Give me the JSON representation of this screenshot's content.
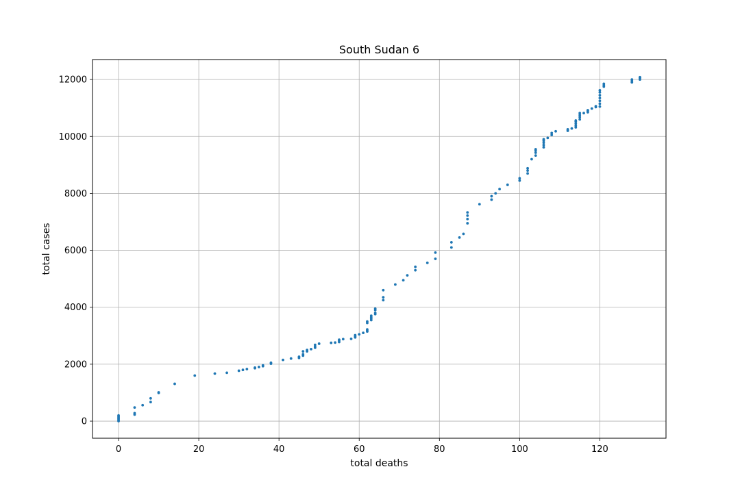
{
  "chart_data": {
    "type": "scatter",
    "title": "South Sudan 6",
    "xlabel": "total deaths",
    "ylabel": "total cases",
    "xlim": [
      -6.5,
      136.5
    ],
    "ylim": [
      -600,
      12700
    ],
    "xticks": [
      0,
      20,
      40,
      60,
      80,
      100,
      120
    ],
    "yticks": [
      0,
      2000,
      4000,
      6000,
      8000,
      10000,
      12000
    ],
    "grid": true,
    "marker_color": "#1f77b4",
    "series": [
      {
        "points": [
          [
            0,
            0
          ],
          [
            0,
            40
          ],
          [
            0,
            80
          ],
          [
            0,
            120
          ],
          [
            0,
            160
          ],
          [
            0,
            200
          ],
          [
            4,
            230
          ],
          [
            4,
            280
          ],
          [
            4,
            480
          ],
          [
            6,
            560
          ],
          [
            8,
            670
          ],
          [
            8,
            800
          ],
          [
            10,
            990
          ],
          [
            10,
            1010
          ],
          [
            14,
            1310
          ],
          [
            19,
            1600
          ],
          [
            24,
            1670
          ],
          [
            27,
            1700
          ],
          [
            30,
            1770
          ],
          [
            31,
            1800
          ],
          [
            32,
            1830
          ],
          [
            34,
            1860
          ],
          [
            34,
            1880
          ],
          [
            35,
            1900
          ],
          [
            36,
            1930
          ],
          [
            36,
            1960
          ],
          [
            38,
            2020
          ],
          [
            38,
            2050
          ],
          [
            41,
            2150
          ],
          [
            43,
            2200
          ],
          [
            45,
            2220
          ],
          [
            45,
            2260
          ],
          [
            46,
            2300
          ],
          [
            46,
            2350
          ],
          [
            46,
            2450
          ],
          [
            47,
            2450
          ],
          [
            47,
            2500
          ],
          [
            48,
            2530
          ],
          [
            49,
            2580
          ],
          [
            49,
            2620
          ],
          [
            49,
            2680
          ],
          [
            50,
            2720
          ],
          [
            53,
            2750
          ],
          [
            54,
            2760
          ],
          [
            55,
            2780
          ],
          [
            55,
            2820
          ],
          [
            55,
            2860
          ],
          [
            56,
            2880
          ],
          [
            58,
            2890
          ],
          [
            59,
            2940
          ],
          [
            59,
            2980
          ],
          [
            59,
            3020
          ],
          [
            60,
            3050
          ],
          [
            61,
            3100
          ],
          [
            62,
            3150
          ],
          [
            62,
            3180
          ],
          [
            62,
            3220
          ],
          [
            62,
            3450
          ],
          [
            62,
            3500
          ],
          [
            63,
            3550
          ],
          [
            63,
            3600
          ],
          [
            63,
            3650
          ],
          [
            63,
            3700
          ],
          [
            64,
            3760
          ],
          [
            64,
            3800
          ],
          [
            64,
            3900
          ],
          [
            64,
            3950
          ],
          [
            66,
            4250
          ],
          [
            66,
            4350
          ],
          [
            66,
            4600
          ],
          [
            69,
            4800
          ],
          [
            71,
            4950
          ],
          [
            72,
            5120
          ],
          [
            74,
            5300
          ],
          [
            74,
            5420
          ],
          [
            77,
            5560
          ],
          [
            79,
            5700
          ],
          [
            79,
            5920
          ],
          [
            83,
            6100
          ],
          [
            83,
            6280
          ],
          [
            85,
            6450
          ],
          [
            86,
            6580
          ],
          [
            87,
            6950
          ],
          [
            87,
            7100
          ],
          [
            87,
            7220
          ],
          [
            87,
            7330
          ],
          [
            90,
            7620
          ],
          [
            93,
            7780
          ],
          [
            93,
            7900
          ],
          [
            94,
            8000
          ],
          [
            95,
            8150
          ],
          [
            97,
            8300
          ],
          [
            100,
            8450
          ],
          [
            100,
            8530
          ],
          [
            102,
            8700
          ],
          [
            102,
            8800
          ],
          [
            102,
            8880
          ],
          [
            103,
            9200
          ],
          [
            104,
            9330
          ],
          [
            104,
            9430
          ],
          [
            104,
            9500
          ],
          [
            104,
            9550
          ],
          [
            106,
            9620
          ],
          [
            106,
            9700
          ],
          [
            106,
            9780
          ],
          [
            106,
            9850
          ],
          [
            106,
            9900
          ],
          [
            107,
            9950
          ],
          [
            108,
            10050
          ],
          [
            108,
            10120
          ],
          [
            109,
            10180
          ],
          [
            112,
            10200
          ],
          [
            112,
            10250
          ],
          [
            113,
            10280
          ],
          [
            114,
            10320
          ],
          [
            114,
            10380
          ],
          [
            114,
            10450
          ],
          [
            114,
            10520
          ],
          [
            114,
            10560
          ],
          [
            115,
            10600
          ],
          [
            115,
            10680
          ],
          [
            115,
            10750
          ],
          [
            115,
            10820
          ],
          [
            116,
            10820
          ],
          [
            117,
            10850
          ],
          [
            117,
            10900
          ],
          [
            117,
            10920
          ],
          [
            118,
            10980
          ],
          [
            119,
            11030
          ],
          [
            119,
            11060
          ],
          [
            120,
            11050
          ],
          [
            120,
            11150
          ],
          [
            120,
            11250
          ],
          [
            120,
            11350
          ],
          [
            120,
            11450
          ],
          [
            120,
            11550
          ],
          [
            120,
            11620
          ],
          [
            121,
            11750
          ],
          [
            121,
            11800
          ],
          [
            121,
            11850
          ],
          [
            128,
            11900
          ],
          [
            128,
            11950
          ],
          [
            128,
            12000
          ],
          [
            130,
            12000
          ],
          [
            130,
            12050
          ],
          [
            130,
            12080
          ]
        ]
      }
    ]
  }
}
